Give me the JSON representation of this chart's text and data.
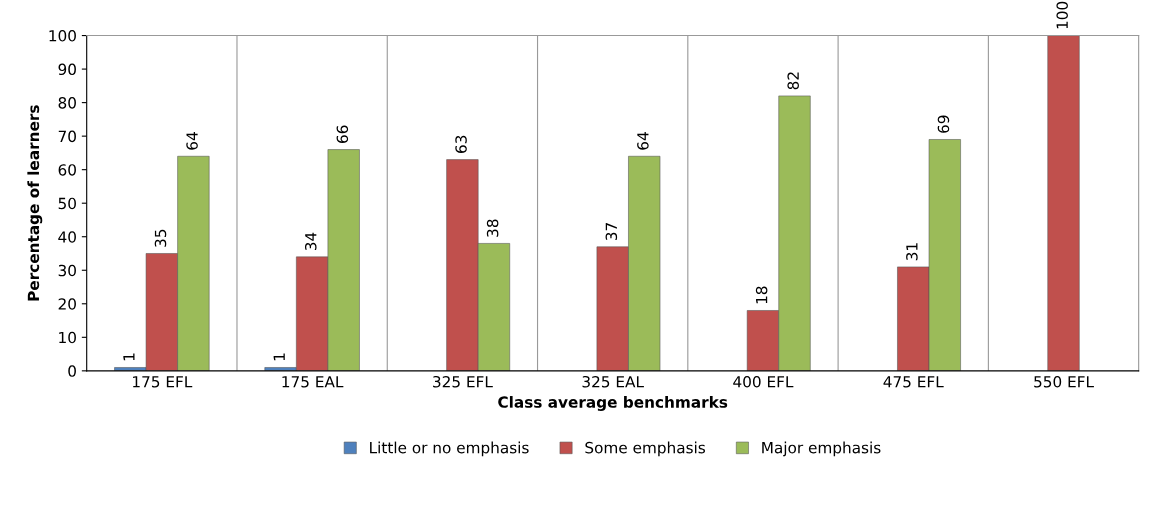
{
  "chart_data": {
    "type": "bar",
    "xlabel": "Class average benchmarks",
    "ylabel": "Percentage of learners",
    "categories": [
      "175 EFL",
      "175 EAL",
      "325 EFL",
      "325 EAL",
      "400 EFL",
      "475 EFL",
      "550 EFL"
    ],
    "series": [
      {
        "name": "Little or no emphasis",
        "color": "#4f81bd",
        "values": [
          1,
          1,
          null,
          null,
          null,
          null,
          null
        ]
      },
      {
        "name": "Some emphasis",
        "color": "#c0504d",
        "values": [
          35,
          34,
          63,
          37,
          18,
          31,
          100
        ]
      },
      {
        "name": "Major emphasis",
        "color": "#9bbb59",
        "values": [
          64,
          66,
          38,
          64,
          82,
          69,
          null
        ]
      }
    ],
    "ylim": [
      0,
      100
    ],
    "yticks": [
      0,
      10,
      20,
      30,
      40,
      50,
      60,
      70,
      80,
      90,
      100
    ],
    "grid": "x",
    "legend": "bottom",
    "data_labels": true
  }
}
